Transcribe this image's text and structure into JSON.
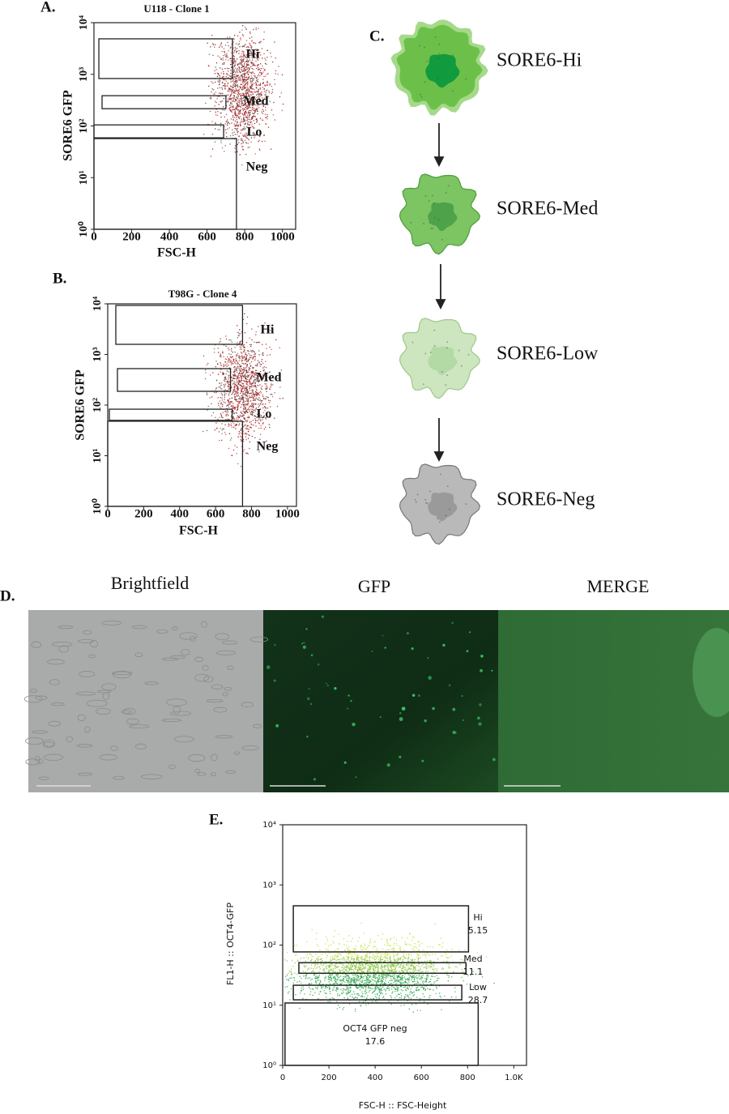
{
  "flow_plots": [
    {
      "label": "A.",
      "title": "U118 - Clone 1",
      "xlabel": "FSC-H",
      "ylabel": "SORE6 GFP",
      "xlim": [
        0,
        1070
      ],
      "ylim": [
        1,
        10000
      ],
      "log_y": true,
      "xticks": [
        0,
        200,
        400,
        600,
        800,
        1000
      ],
      "yticks": [
        {
          "value": 1,
          "label": "10⁰"
        },
        {
          "value": 10,
          "label": "10¹"
        },
        {
          "value": 100,
          "label": "10²"
        },
        {
          "value": 1000,
          "label": "10³"
        },
        {
          "value": 10000,
          "label": "10⁴"
        }
      ],
      "gates": [
        {
          "name": "Hi",
          "x": [
            26,
            735
          ],
          "y": [
            830,
            4870
          ]
        },
        {
          "name": "Med",
          "x": [
            43,
            700
          ],
          "y": [
            216,
            386
          ]
        },
        {
          "name": "Lo",
          "x": [
            0,
            688
          ],
          "y": [
            59,
            105
          ]
        },
        {
          "name": "Neg",
          "x": [
            0,
            756
          ],
          "y": [
            1,
            57
          ]
        }
      ]
    },
    {
      "label": "B.",
      "title": "T98G - Clone 4",
      "xlabel": "FSC-H",
      "ylabel": "SORE6 GFP",
      "xlim": [
        0,
        1050
      ],
      "ylim": [
        1,
        10000
      ],
      "log_y": true,
      "xticks": [
        0,
        200,
        400,
        600,
        800,
        1000
      ],
      "yticks": [
        {
          "value": 1,
          "label": "10⁰"
        },
        {
          "value": 10,
          "label": "10¹"
        },
        {
          "value": 100,
          "label": "10²"
        },
        {
          "value": 1000,
          "label": "10³"
        },
        {
          "value": 10000,
          "label": "10⁴"
        }
      ],
      "gates": [
        {
          "name": "Hi",
          "x": [
            45,
            750
          ],
          "y": [
            1585,
            9300
          ]
        },
        {
          "name": "Med",
          "x": [
            54,
            683
          ],
          "y": [
            187,
            525
          ]
        },
        {
          "name": "Lo",
          "x": [
            9,
            692
          ],
          "y": [
            50,
            83
          ]
        },
        {
          "name": "Neg",
          "x": [
            0,
            750
          ],
          "y": [
            1,
            48
          ]
        }
      ]
    },
    {
      "label": "E.",
      "xlabel": "FSC-H :: FSC-Height",
      "ylabel": "FL1-H :: OCT4-GFP",
      "xlim": [
        0,
        1055
      ],
      "ylim": [
        1,
        10000
      ],
      "log_y": true,
      "xticks": [
        0,
        200,
        400,
        600,
        800,
        {
          "value": 1000,
          "label": "1.0K"
        }
      ],
      "yticks": [
        {
          "value": 1,
          "label": "10⁰"
        },
        {
          "value": 10,
          "label": "10¹"
        },
        {
          "value": 100,
          "label": "10²"
        },
        {
          "value": 1000,
          "label": "10³"
        },
        {
          "value": 10000,
          "label": "10⁴"
        }
      ],
      "gates": [
        {
          "name": "Hi",
          "percent": 5.15,
          "x": [
            46,
            804
          ],
          "y": [
            77,
            450
          ]
        },
        {
          "name": "Med",
          "percent": 11.1,
          "x": [
            70,
            793
          ],
          "y": [
            34,
            51
          ]
        },
        {
          "name": "Low",
          "percent": 28.7,
          "x": [
            46,
            775
          ],
          "y": [
            12.3,
            21.5
          ]
        },
        {
          "name": "OCT4 GFP neg",
          "percent": 17.6,
          "x": [
            10,
            846
          ],
          "y": [
            1,
            10.9
          ]
        }
      ]
    }
  ],
  "diagram": {
    "label": "C.",
    "stages": [
      "SORE6-Hi",
      "SORE6-Med",
      "SORE6-Low",
      "SORE6-Neg"
    ]
  },
  "microscopy": {
    "label": "D.",
    "channels": [
      "Brightfield",
      "GFP",
      "MERGE"
    ]
  }
}
